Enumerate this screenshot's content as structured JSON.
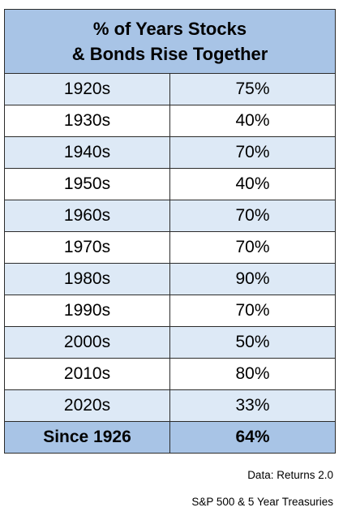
{
  "chart_data": {
    "type": "table",
    "title_line1": "% of Years Stocks",
    "title_line2": "& Bonds Rise Together",
    "rows": [
      {
        "period": "1920s",
        "value": "75%"
      },
      {
        "period": "1930s",
        "value": "40%"
      },
      {
        "period": "1940s",
        "value": "70%"
      },
      {
        "period": "1950s",
        "value": "40%"
      },
      {
        "period": "1960s",
        "value": "70%"
      },
      {
        "period": "1970s",
        "value": "70%"
      },
      {
        "period": "1980s",
        "value": "90%"
      },
      {
        "period": "1990s",
        "value": "70%"
      },
      {
        "period": "2000s",
        "value": "50%"
      },
      {
        "period": "2010s",
        "value": "80%"
      },
      {
        "period": "2020s",
        "value": "33%"
      }
    ],
    "summary": {
      "period": "Since 1926",
      "value": "64%"
    },
    "colors": {
      "header_fill": "#a8c4e6",
      "shaded_row_fill": "#dde9f6",
      "plain_row_fill": "#ffffff",
      "border": "#2b2b2b"
    }
  },
  "notes": {
    "source": "Data: Returns 2.0",
    "basis": "S&P 500 & 5 Year Treasuries"
  }
}
